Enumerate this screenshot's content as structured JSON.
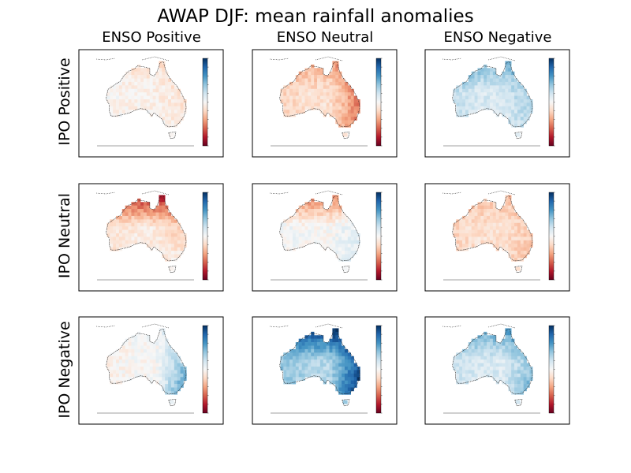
{
  "title": "AWAP DJF: mean rainfall anomalies",
  "column_titles": [
    "ENSO Positive",
    "ENSO Neutral",
    "ENSO Negative"
  ],
  "row_titles": [
    "IPO Positive",
    "IPO Neutral",
    "IPO Negative"
  ],
  "colormap": {
    "name": "RdBu",
    "stops": [
      "#67001f",
      "#b2182b",
      "#d6604d",
      "#f4a582",
      "#fddbc7",
      "#f7f7f7",
      "#d1e5f0",
      "#92c5de",
      "#4393c3",
      "#2166ac",
      "#053061"
    ]
  },
  "chart_data": [
    {
      "type": "heatmap",
      "row": "IPO Positive",
      "column": "ENSO Positive",
      "pattern": "weak mixed anomalies, slightly dry north and east",
      "bias": -0.05,
      "north": -0.1,
      "east": -0.1,
      "southeast": 0.05,
      "west": 0.05
    },
    {
      "type": "heatmap",
      "row": "IPO Positive",
      "column": "ENSO Neutral",
      "pattern": "dry, strongest over Cape York",
      "bias": -0.15,
      "north": -0.25,
      "east": -0.4,
      "southeast": 0.0,
      "west": -0.1
    },
    {
      "type": "heatmap",
      "row": "IPO Positive",
      "column": "ENSO Negative",
      "pattern": "wet north and interior, slightly dry south",
      "bias": 0.15,
      "north": 0.35,
      "east": 0.2,
      "southeast": -0.05,
      "west": 0.15
    },
    {
      "type": "heatmap",
      "row": "IPO Neutral",
      "column": "ENSO Positive",
      "pattern": "strongly dry Top End, mixed elsewhere",
      "bias": -0.1,
      "north": -0.75,
      "east": -0.15,
      "southeast": 0.15,
      "west": -0.05
    },
    {
      "type": "heatmap",
      "row": "IPO Neutral",
      "column": "ENSO Neutral",
      "pattern": "dry Top End, weakly wet interior",
      "bias": 0.0,
      "north": -0.6,
      "east": 0.1,
      "southeast": 0.05,
      "west": 0.05
    },
    {
      "type": "heatmap",
      "row": "IPO Neutral",
      "column": "ENSO Negative",
      "pattern": "weakly dry across the continent",
      "bias": -0.15,
      "north": -0.15,
      "east": -0.1,
      "southeast": -0.05,
      "west": -0.1
    },
    {
      "type": "heatmap",
      "row": "IPO Negative",
      "column": "ENSO Positive",
      "pattern": "wet east coast, slightly dry centre",
      "bias": 0.0,
      "north": 0.0,
      "east": 0.45,
      "southeast": 0.2,
      "west": -0.1
    },
    {
      "type": "heatmap",
      "row": "IPO Negative",
      "column": "ENSO Neutral",
      "pattern": "strongly wet north and east",
      "bias": 0.3,
      "north": 0.7,
      "east": 0.55,
      "southeast": 0.2,
      "west": 0.15
    },
    {
      "type": "heatmap",
      "row": "IPO Negative",
      "column": "ENSO Negative",
      "pattern": "wet north, weakly wet elsewhere",
      "bias": 0.15,
      "north": 0.45,
      "east": 0.25,
      "southeast": 0.1,
      "west": 0.1
    }
  ]
}
